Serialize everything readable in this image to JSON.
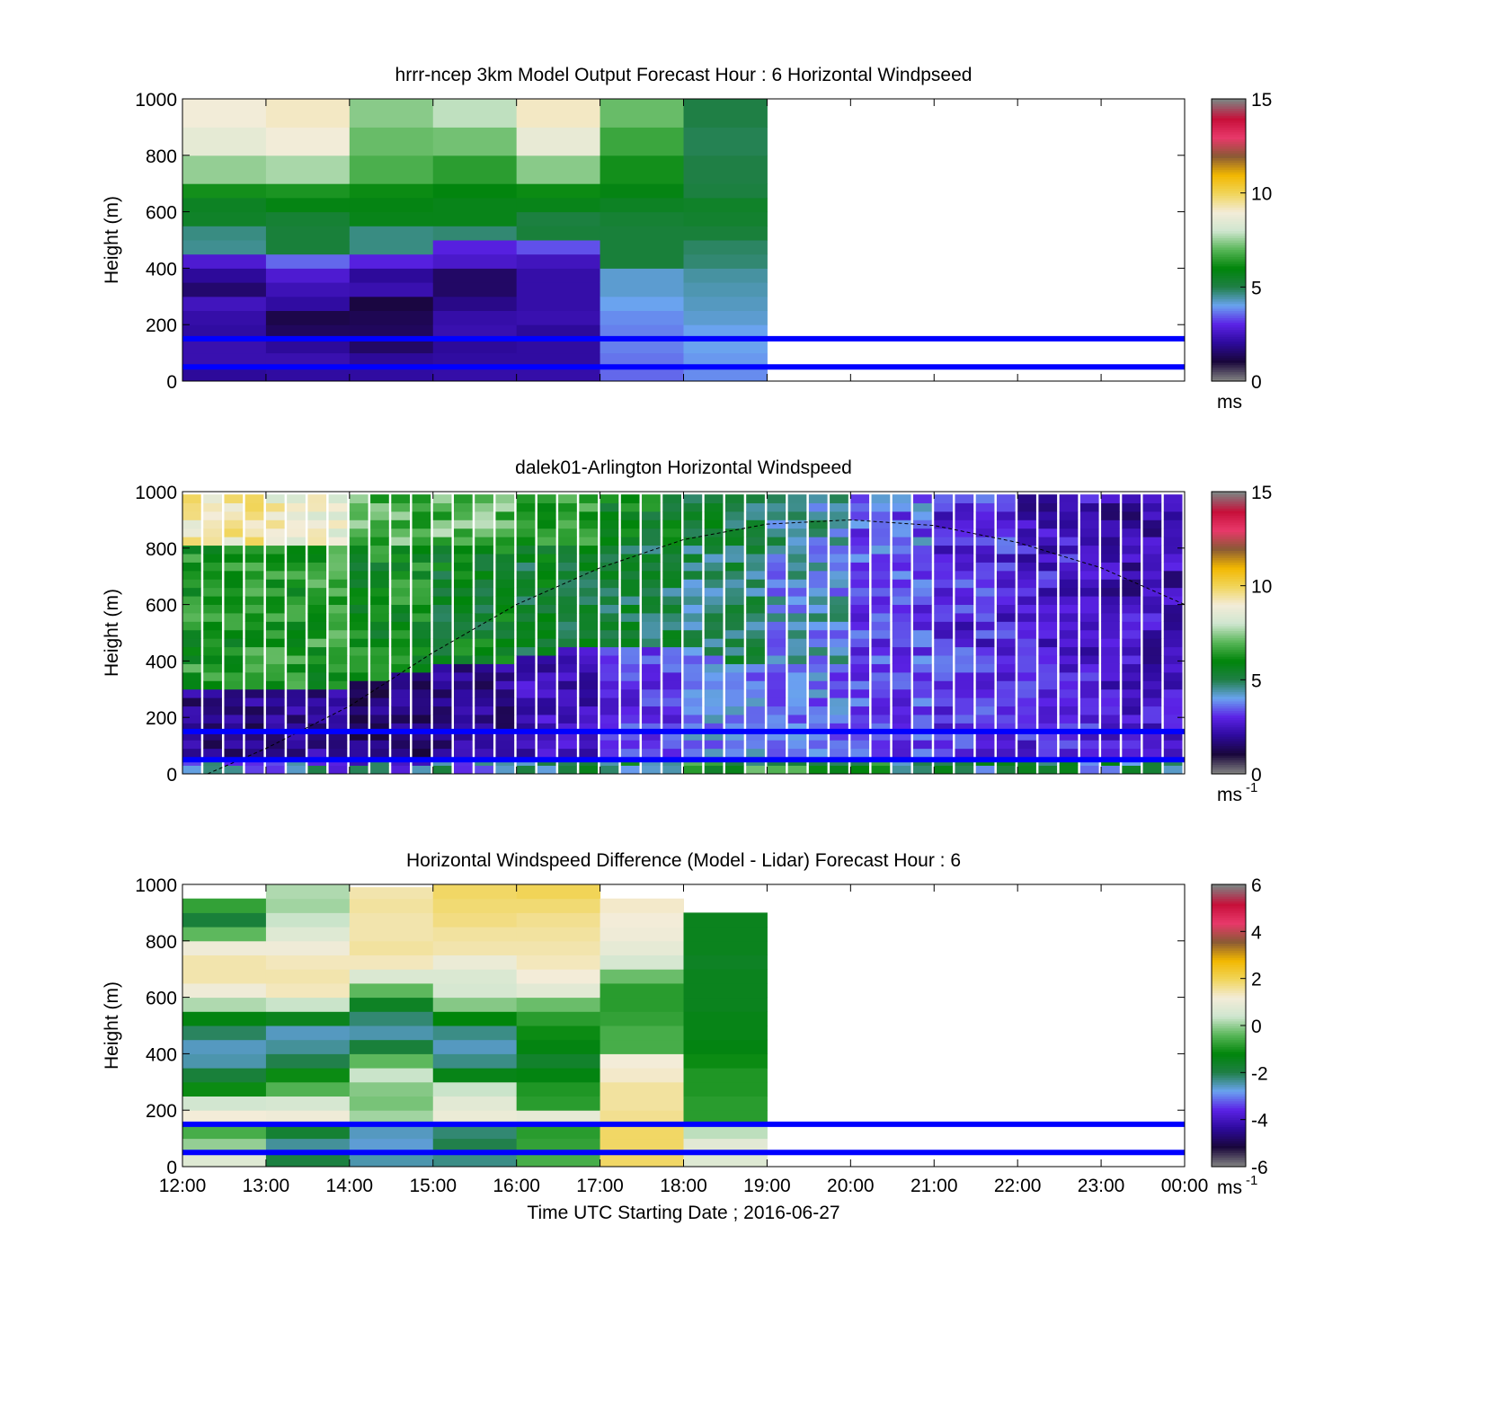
{
  "figure": {
    "xlabel": "Time UTC  Starting Date ; 2016-06-27",
    "ylabel": "Height (m)",
    "x_tick_labels": [
      "12:00",
      "13:00",
      "14:00",
      "15:00",
      "16:00",
      "17:00",
      "18:00",
      "19:00",
      "20:00",
      "21:00",
      "22:00",
      "23:00",
      "00:00"
    ],
    "y_tick_labels": [
      "0",
      "200",
      "400",
      "600",
      "800",
      "1000"
    ]
  },
  "chart_data": [
    {
      "type": "heatmap",
      "title": "hrrr-ncep 3km Model Output   Forecast Hour : 6 Horizontal Windpseed",
      "ylabel": "Height (m)",
      "xlim_hours": [
        12,
        24
      ],
      "ylim": [
        0,
        1000
      ],
      "colorbar": {
        "range": [
          0,
          15
        ],
        "ticks": [
          "0",
          "5",
          "10",
          "15"
        ],
        "unit_label": "ms",
        "unit_superscript": ""
      },
      "columns_start_hour": [
        12,
        13,
        14,
        15,
        16,
        17,
        18
      ],
      "column_width_hours": 1,
      "level_edges_m": [
        0,
        50,
        100,
        150,
        200,
        250,
        300,
        350,
        400,
        450,
        500,
        550,
        600,
        650,
        700,
        800,
        900,
        1000
      ],
      "values": [
        [
          1.5,
          1.8,
          1.8,
          1.6,
          1.7,
          2.0,
          1.0,
          1.5,
          2.3,
          4.3,
          4.4,
          5.3,
          5.4,
          6.1,
          7.5,
          8.7,
          9.1
        ],
        [
          1.6,
          1.8,
          1.5,
          0.8,
          0.6,
          1.6,
          1.9,
          2.3,
          3.2,
          5.0,
          5.0,
          5.1,
          5.7,
          6.2,
          7.7,
          9.1,
          9.3
        ],
        [
          1.6,
          1.5,
          0.9,
          0.8,
          0.7,
          0.5,
          1.8,
          1.5,
          2.5,
          4.4,
          4.4,
          5.6,
          5.7,
          6.0,
          6.8,
          7.1,
          7.4
        ],
        [
          1.7,
          1.6,
          1.5,
          1.8,
          1.7,
          1.3,
          0.9,
          0.9,
          2.2,
          2.5,
          4.5,
          5.6,
          5.6,
          5.8,
          6.4,
          7.2,
          7.9
        ],
        [
          1.7,
          1.6,
          1.6,
          1.5,
          1.8,
          1.7,
          1.7,
          1.7,
          2.0,
          3.0,
          5.0,
          4.9,
          5.6,
          6.0,
          7.4,
          8.8,
          9.3
        ],
        [
          3.2,
          3.3,
          3.4,
          3.4,
          3.5,
          3.7,
          3.9,
          3.9,
          5.0,
          5.0,
          5.0,
          5.1,
          5.4,
          5.7,
          6.1,
          6.6,
          7.1
        ],
        [
          3.5,
          3.6,
          3.7,
          3.7,
          3.9,
          4.0,
          4.1,
          4.2,
          4.5,
          4.6,
          5.0,
          5.2,
          5.3,
          4.9,
          4.8,
          4.7,
          4.8
        ]
      ],
      "reference_lines_m": [
        50,
        150
      ]
    },
    {
      "type": "heatmap",
      "title": "dalek01-Arlington  Horizontal Windspeed",
      "ylabel": "Height (m)",
      "xlim_hours": [
        12,
        24
      ],
      "ylim": [
        0,
        1000
      ],
      "colorbar": {
        "range": [
          0,
          15
        ],
        "ticks": [
          "0",
          "5",
          "10",
          "15"
        ],
        "unit_label": "ms",
        "unit_superscript": "-1"
      },
      "profile_interval_minutes": 15,
      "first_profile_hour": 12,
      "last_profile_hour": 23.75,
      "level_spacing_m": 30,
      "top_of_data_m": 990,
      "low_jet_top_m": [
        280,
        290,
        280,
        300,
        310,
        350,
        370,
        380,
        420,
        440,
        450,
        440,
        400,
        380,
        370,
        380,
        390,
        390,
        420,
        430,
        420,
        410,
        400,
        380
      ],
      "mean_speed_by_hour": [
        {
          "hour": 12,
          "lower_jet": 1.0,
          "middle": 6.2,
          "top": 9.5
        },
        {
          "hour": 13,
          "lower_jet": 1.2,
          "middle": 6.3,
          "top": 9.0
        },
        {
          "hour": 14,
          "lower_jet": 0.8,
          "middle": 5.9,
          "top": 6.8
        },
        {
          "hour": 15,
          "lower_jet": 1.1,
          "middle": 5.5,
          "top": 7.0
        },
        {
          "hour": 16,
          "lower_jet": 1.7,
          "middle": 5.3,
          "top": 6.6
        },
        {
          "hour": 17,
          "lower_jet": 2.5,
          "middle": 4.9,
          "top": 5.6
        },
        {
          "hour": 18,
          "lower_jet": 3.2,
          "middle": 4.6,
          "top": 4.9
        },
        {
          "hour": 19,
          "lower_jet": 3.0,
          "middle": 3.8,
          "top": 4.2
        },
        {
          "hour": 20,
          "lower_jet": 2.6,
          "middle": 3.0,
          "top": 3.2
        },
        {
          "hour": 21,
          "lower_jet": 2.4,
          "middle": 2.5,
          "top": 2.6
        },
        {
          "hour": 22,
          "lower_jet": 2.2,
          "middle": 2.2,
          "top": 2.0
        },
        {
          "hour": 23,
          "lower_jet": 1.9,
          "middle": 1.9,
          "top": 1.6
        }
      ],
      "boundary_layer_curve": {
        "style": "dashed",
        "points_hours_m": [
          [
            12.3,
            0
          ],
          [
            13,
            90
          ],
          [
            14,
            240
          ],
          [
            15,
            430
          ],
          [
            16,
            600
          ],
          [
            17,
            730
          ],
          [
            18,
            830
          ],
          [
            19,
            885
          ],
          [
            20,
            900
          ],
          [
            21,
            880
          ],
          [
            22,
            820
          ],
          [
            23,
            730
          ],
          [
            24,
            600
          ]
        ]
      },
      "reference_lines_m": [
        50,
        150
      ]
    },
    {
      "type": "heatmap",
      "title": "Horizontal Windspeed Difference (Model - Lidar) Forecast Hour : 6",
      "xlabel": "Time UTC  Starting Date ; 2016-06-27",
      "ylabel": "Height (m)",
      "xlim_hours": [
        12,
        24
      ],
      "ylim": [
        0,
        1000
      ],
      "colorbar": {
        "range": [
          -6,
          6
        ],
        "ticks": [
          "-6",
          "-4",
          "-2",
          "0",
          "2",
          "4",
          "6"
        ],
        "unit_label": "ms",
        "unit_superscript": "-1"
      },
      "columns_start_hour": [
        12,
        13,
        14,
        15,
        16,
        17,
        18
      ],
      "column_width_hours": 1,
      "column_top_m": [
        960,
        1000,
        990,
        1000,
        1000,
        960,
        910
      ],
      "level_edges_m": [
        0,
        50,
        100,
        150,
        200,
        250,
        300,
        350,
        400,
        450,
        500,
        550,
        600,
        650,
        700,
        750,
        800,
        850,
        900,
        950,
        1000
      ],
      "values": [
        [
          0.8,
          0.0,
          -0.6,
          1.3,
          0.5,
          -1.2,
          -2.0,
          -2.7,
          -2.8,
          -2.3,
          -1.4,
          0.2,
          1.2,
          1.6,
          1.6,
          1.2,
          -0.4,
          -2.0,
          -0.8,
          null
        ],
        [
          -2.1,
          -2.6,
          -1.9,
          1.2,
          0.6,
          -0.5,
          -1.2,
          -2.2,
          -2.6,
          -2.8,
          -1.6,
          0.4,
          1.5,
          1.6,
          1.5,
          1.2,
          0.8,
          0.4,
          0.1,
          0.2
        ],
        [
          -2.7,
          -2.9,
          -2.8,
          0.1,
          -0.2,
          -0.1,
          0.4,
          -0.4,
          -2.0,
          -2.7,
          -2.4,
          -1.7,
          -0.4,
          0.7,
          1.5,
          1.7,
          1.6,
          1.6,
          1.7,
          1.6
        ],
        [
          -2.5,
          -2.2,
          -2.4,
          1.1,
          0.9,
          0.4,
          -1.5,
          -2.5,
          -2.8,
          -2.5,
          -1.3,
          -0.1,
          0.6,
          0.7,
          1.1,
          1.6,
          1.7,
          1.9,
          2.0,
          2.1
        ],
        [
          -0.6,
          -0.8,
          -0.9,
          1.0,
          -0.9,
          -1.0,
          -1.4,
          -1.8,
          -1.4,
          -1.2,
          -0.9,
          -0.3,
          0.9,
          1.3,
          1.5,
          1.6,
          1.7,
          1.8,
          2.0,
          2.2
        ],
        [
          2.1,
          2.1,
          2.1,
          1.8,
          1.7,
          1.7,
          1.4,
          1.3,
          -0.6,
          -0.6,
          -0.8,
          -0.9,
          -0.9,
          -0.3,
          0.6,
          1.0,
          1.2,
          1.3,
          1.4,
          null
        ],
        [
          0.8,
          0.9,
          0.3,
          -0.9,
          -0.9,
          -1.0,
          -1.0,
          -1.2,
          -1.4,
          -1.5,
          -1.5,
          -1.6,
          -1.6,
          -1.6,
          -1.7,
          -1.6,
          -1.6,
          -1.6,
          null,
          null
        ]
      ],
      "reference_lines_m": [
        50,
        150
      ]
    }
  ],
  "style": {
    "reference_line_color": "#0000ff",
    "colormap_stops": [
      "#808080",
      "#19063b",
      "#2d0a9c",
      "#5b22e6",
      "#6aa3f0",
      "#1f7f46",
      "#00850a",
      "#58b658",
      "#cfe6cf",
      "#f3ecd8",
      "#f1d55a",
      "#f2b700",
      "#8a5a35",
      "#e8386a",
      "#c7103a",
      "#808080"
    ]
  }
}
